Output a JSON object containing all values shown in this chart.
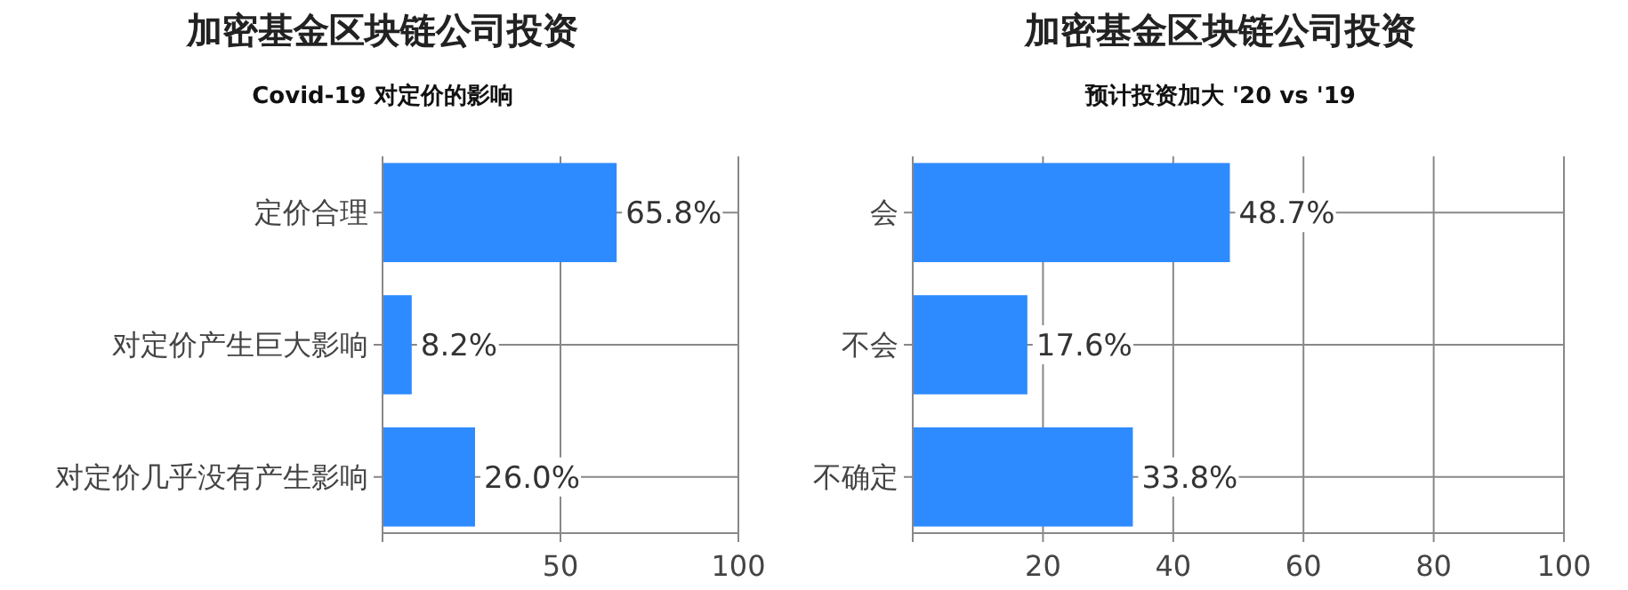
{
  "chart_data": [
    {
      "type": "bar",
      "orientation": "horizontal",
      "title": "加密基金区块链公司投资",
      "subtitle": "Covid-19 对定价的影响",
      "categories": [
        "定价合理",
        "对定价产生巨大影响",
        "对定价几乎没有产生影响"
      ],
      "values": [
        65.8,
        8.2,
        26.0
      ],
      "value_labels": [
        "65.8%",
        "8.2%",
        "26.0%"
      ],
      "color": "#2e8bff",
      "xlim": [
        0,
        100
      ],
      "xticks": [
        {
          "value": 0,
          "label": null
        },
        50,
        100
      ],
      "grid": true
    },
    {
      "type": "bar",
      "orientation": "horizontal",
      "title": "加密基金区块链公司投资",
      "subtitle": "预计投资加大 '20 vs '19",
      "categories": [
        "会",
        "不会",
        "不确定"
      ],
      "values": [
        48.7,
        17.6,
        33.8
      ],
      "value_labels": [
        "48.7%",
        "17.6%",
        "33.8%"
      ],
      "color": "#2e8bff",
      "xlim": [
        0,
        100
      ],
      "xticks": [
        {
          "value": 0,
          "label": null
        },
        20,
        40,
        60,
        80,
        100
      ],
      "grid": true
    }
  ]
}
